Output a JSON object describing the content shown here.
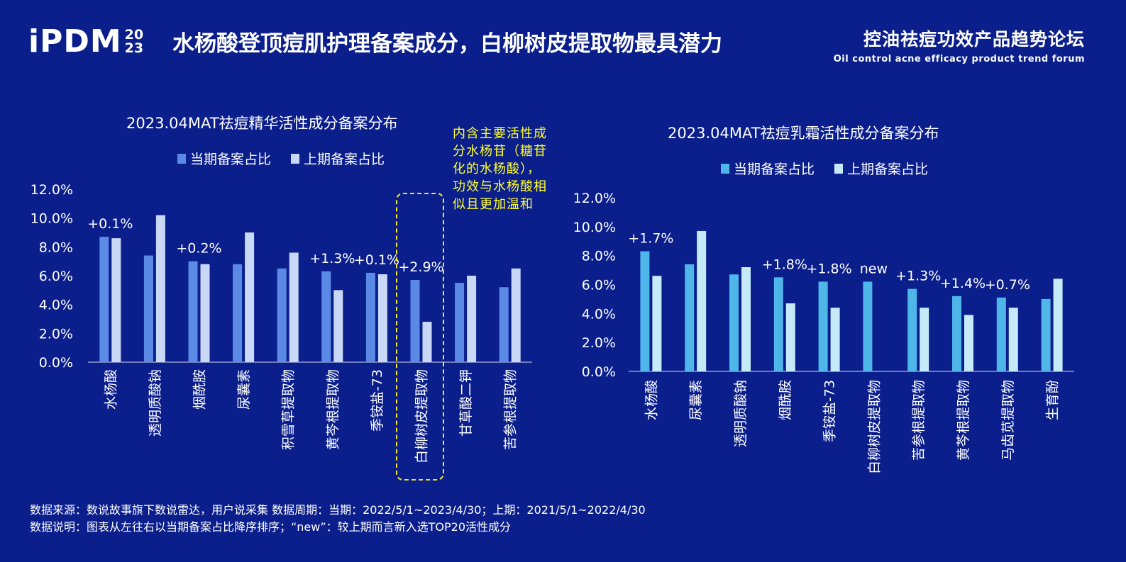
{
  "header": {
    "logo_text": "iPDM",
    "logo_year_top": "20",
    "logo_year_bottom": "23",
    "title": "水杨酸登顶痘肌护理备案成分，白柳树皮提取物最具潜力",
    "forum_cn": "控油祛痘功效产品趋势论坛",
    "forum_en": "Oil control acne efficacy product trend forum"
  },
  "colors": {
    "background": "#0b1f8c",
    "left_current": "#5b8ae6",
    "left_previous": "#c9d8f6",
    "right_current": "#4eb6e8",
    "right_previous": "#c5eaf8",
    "annotation": "#ffff2e"
  },
  "annotation": {
    "text": "内含主要活性成分水杨苷（糖苷化的水杨酸），功效与水杨酸相似且更加温和"
  },
  "footer": {
    "line1": "数据来源：数说故事旗下数说雷达，用户说采集      数据周期：当期：2022/5/1~2023/4/30；上期：2021/5/1~2022/4/30",
    "line2": "数据说明：图表从左往右以当期备案占比降序排序；“new”：较上期而言新入选TOP20活性成分"
  },
  "chart_data": [
    {
      "type": "bar",
      "title": "2023.04MAT祛痘精华活性成分备案分布",
      "legend_position": "top",
      "categories": [
        "水杨酸",
        "透明质酸钠",
        "烟酰胺",
        "尿囊素",
        "积雪草提取物",
        "黄芩根提取物",
        "季铵盐-73",
        "白柳树皮提取物",
        "甘草酸二钾",
        "苦参根提取物"
      ],
      "series": [
        {
          "name": "当期备案占比",
          "values": [
            8.7,
            7.4,
            7.0,
            6.8,
            6.5,
            6.3,
            6.2,
            5.7,
            5.5,
            5.2
          ]
        },
        {
          "name": "上期备案占比",
          "values": [
            8.6,
            10.2,
            6.8,
            9.0,
            7.6,
            5.0,
            6.1,
            2.8,
            6.0,
            6.5
          ]
        }
      ],
      "ylim": [
        0,
        12
      ],
      "yticks": [
        "0.0%",
        "2.0%",
        "4.0%",
        "6.0%",
        "8.0%",
        "10.0%",
        "12.0%"
      ],
      "grid": false,
      "annotations": [
        {
          "category": "水杨酸",
          "text": "+0.1%"
        },
        {
          "category": "烟酰胺",
          "text": "+0.2%"
        },
        {
          "category": "黄芩根提取物",
          "text": "+1.3%"
        },
        {
          "category": "季铵盐-73",
          "text": "+0.1%"
        },
        {
          "category": "白柳树皮提取物",
          "text": "+2.9%"
        }
      ],
      "highlight_category": "白柳树皮提取物"
    },
    {
      "type": "bar",
      "title": "2023.04MAT祛痘乳霜活性成分备案分布",
      "legend_position": "top",
      "categories": [
        "水杨酸",
        "尿囊素",
        "透明质酸钠",
        "烟酰胺",
        "季铵盐-73",
        "白柳树皮提取物",
        "苦参根提取物",
        "黄芩根提取物",
        "马齿苋提取物",
        "生育酚"
      ],
      "series": [
        {
          "name": "当期备案占比",
          "values": [
            8.3,
            7.4,
            6.7,
            6.5,
            6.2,
            6.2,
            5.7,
            5.2,
            5.1,
            5.0
          ]
        },
        {
          "name": "上期备案占比",
          "values": [
            6.6,
            9.7,
            7.2,
            4.7,
            4.4,
            null,
            4.4,
            3.9,
            4.4,
            6.4
          ]
        }
      ],
      "ylim": [
        0,
        12
      ],
      "yticks": [
        "0.0%",
        "2.0%",
        "4.0%",
        "6.0%",
        "8.0%",
        "10.0%",
        "12.0%"
      ],
      "grid": false,
      "annotations": [
        {
          "category": "水杨酸",
          "text": "+1.7%"
        },
        {
          "category": "烟酰胺",
          "text": "+1.8%"
        },
        {
          "category": "季铵盐-73",
          "text": "+1.8%"
        },
        {
          "category": "白柳树皮提取物",
          "text": "new"
        },
        {
          "category": "苦参根提取物",
          "text": "+1.3%"
        },
        {
          "category": "黄芩根提取物",
          "text": "+1.4%"
        },
        {
          "category": "马齿苋提取物",
          "text": "+0.7%"
        }
      ]
    }
  ]
}
